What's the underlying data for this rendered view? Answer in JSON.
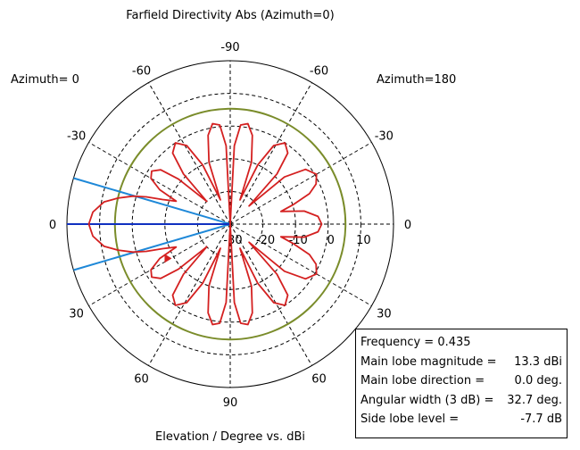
{
  "chart_data": {
    "type": "polar",
    "title": "Farfield Directivity Abs (Azimuth=0)",
    "xlabel": "Elevation / Degree vs. dBi",
    "left_label": "Azimuth=  0",
    "right_label": "Azimuth=180",
    "radial_axis": {
      "min": -30,
      "max": 20,
      "ticks": [
        -30,
        -20,
        -10,
        0,
        10
      ],
      "tick_labels": [
        "-30",
        "-20",
        "-10",
        "0",
        "10"
      ]
    },
    "angle_ticks": [
      {
        "deg": -90,
        "label": "-90"
      },
      {
        "deg": -60,
        "label": "-60"
      },
      {
        "deg": -30,
        "label": "-30"
      },
      {
        "deg": 0,
        "label": "0"
      },
      {
        "deg": 30,
        "label": "30"
      },
      {
        "deg": 60,
        "label": "60"
      },
      {
        "deg": 90,
        "label": "90"
      },
      {
        "deg": 120,
        "label": "60"
      },
      {
        "deg": 150,
        "label": "30"
      },
      {
        "deg": 180,
        "label": "0"
      },
      {
        "deg": 210,
        "label": "-30"
      },
      {
        "deg": -120,
        "label": "-60"
      }
    ],
    "reference_circle_dbi": 5.3,
    "main_lobe_direction_deg": 0,
    "beamwidth_half_deg": 16.35,
    "series": [
      {
        "color": "#d42020",
        "points": [
          [
            0,
            13.3
          ],
          [
            5,
            12.2
          ],
          [
            10,
            9.2
          ],
          [
            13,
            5.3
          ],
          [
            16,
            1.0
          ],
          [
            18,
            -3.0
          ],
          [
            20,
            -8.0
          ],
          [
            23,
            -12.0
          ],
          [
            26,
            -6.0
          ],
          [
            30,
            -2.0
          ],
          [
            34,
            -1.0
          ],
          [
            38,
            -3.0
          ],
          [
            41,
            -9.0
          ],
          [
            44,
            -20.0
          ],
          [
            47,
            -9.0
          ],
          [
            51,
            -2.0
          ],
          [
            56,
            0.0
          ],
          [
            61,
            -2.5
          ],
          [
            65,
            -10.0
          ],
          [
            68,
            -22.0
          ],
          [
            71,
            -10.0
          ],
          [
            76,
            -2.0
          ],
          [
            80,
            1.2
          ],
          [
            84,
            0.5
          ],
          [
            87,
            -6.0
          ],
          [
            90,
            -30.0
          ],
          [
            93,
            -6.0
          ],
          [
            96,
            0.5
          ],
          [
            100,
            1.2
          ],
          [
            104,
            -2.0
          ],
          [
            109,
            -10.0
          ],
          [
            112,
            -22.0
          ],
          [
            115,
            -10.0
          ],
          [
            119,
            -2.5
          ],
          [
            124,
            0.0
          ],
          [
            129,
            -2.0
          ],
          [
            133,
            -9.0
          ],
          [
            136,
            -22.0
          ],
          [
            139,
            -8.0
          ],
          [
            144,
            -1.5
          ],
          [
            150,
            0.5
          ],
          [
            155,
            -1.0
          ],
          [
            159,
            -4.0
          ],
          [
            163,
            -10.0
          ],
          [
            166,
            -14.0
          ],
          [
            170,
            -7.0
          ],
          [
            175,
            -3.0
          ],
          [
            180,
            -2.0
          ],
          [
            185,
            -3.0
          ],
          [
            190,
            -7.0
          ],
          [
            194,
            -14.0
          ],
          [
            197,
            -10.0
          ],
          [
            201,
            -4.0
          ],
          [
            205,
            -1.0
          ],
          [
            210,
            0.5
          ],
          [
            216,
            -1.5
          ],
          [
            221,
            -8.0
          ],
          [
            224,
            -22.0
          ],
          [
            227,
            -9.0
          ],
          [
            231,
            -2.0
          ],
          [
            236,
            0.0
          ],
          [
            241,
            -2.5
          ],
          [
            245,
            -10.0
          ],
          [
            248,
            -22.0
          ],
          [
            251,
            -10.0
          ],
          [
            256,
            -2.0
          ],
          [
            260,
            1.2
          ],
          [
            264,
            0.5
          ],
          [
            267,
            -6.0
          ],
          [
            270,
            -30.0
          ],
          [
            273,
            -6.0
          ],
          [
            276,
            0.5
          ],
          [
            280,
            1.2
          ],
          [
            284,
            -2.0
          ],
          [
            289,
            -10.0
          ],
          [
            292,
            -22.0
          ],
          [
            295,
            -10.0
          ],
          [
            299,
            -2.5
          ],
          [
            304,
            0.0
          ],
          [
            309,
            -2.0
          ],
          [
            313,
            -9.0
          ],
          [
            316,
            -20.0
          ],
          [
            319,
            -9.0
          ],
          [
            322,
            -3.0
          ],
          [
            326,
            -1.0
          ],
          [
            330,
            -2.0
          ],
          [
            334,
            -6.0
          ],
          [
            337,
            -12.0
          ],
          [
            340,
            -8.0
          ],
          [
            342,
            -3.0
          ],
          [
            344,
            1.0
          ],
          [
            347,
            5.3
          ],
          [
            350,
            9.2
          ],
          [
            355,
            12.2
          ],
          [
            360,
            13.3
          ]
        ]
      }
    ],
    "info": {
      "frequency": "Frequency = 0.435",
      "main_lobe_magnitude_label": "Main lobe magnitude =",
      "main_lobe_magnitude_value": "13.3 dBi",
      "main_lobe_direction_label": "Main lobe direction =",
      "main_lobe_direction_value": "0.0 deg.",
      "angular_width_label": "Angular width (3 dB) =",
      "angular_width_value": "32.7 deg.",
      "side_lobe_level_label": "Side lobe level =",
      "side_lobe_level_value": "-7.7 dB"
    },
    "colors": {
      "pattern": "#d42020",
      "reference_circle": "#7a8c2a",
      "main_axis": "#1030c0",
      "beamwidth": "#1e88d8",
      "grid": "#000000"
    }
  }
}
